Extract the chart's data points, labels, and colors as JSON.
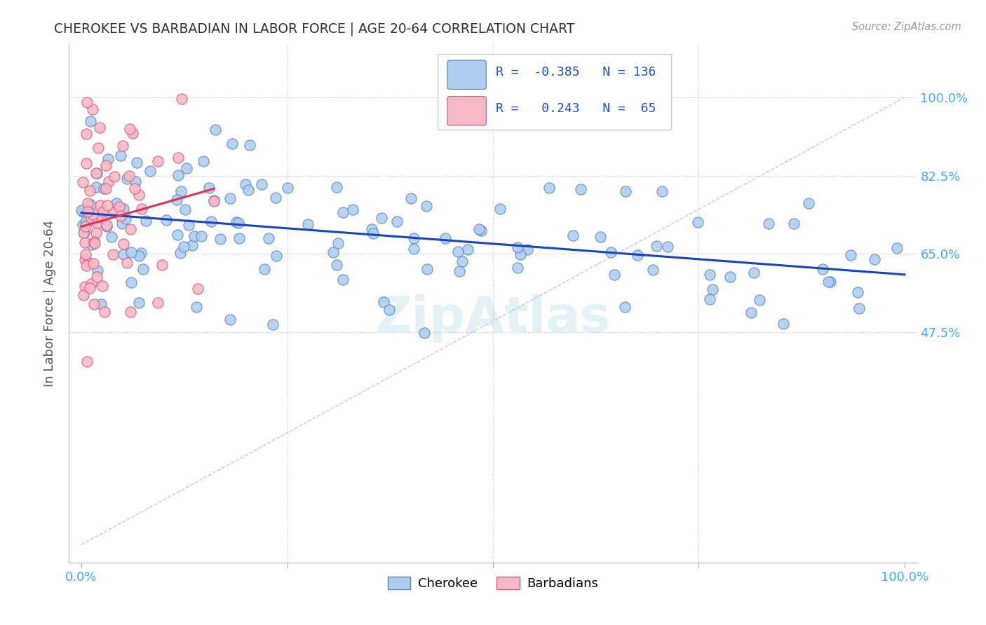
{
  "title": "CHEROKEE VS BARBADIAN IN LABOR FORCE | AGE 20-64 CORRELATION CHART",
  "source": "Source: ZipAtlas.com",
  "ylabel": "In Labor Force | Age 20-64",
  "legend_cherokee": "Cherokee",
  "legend_barbadians": "Barbadians",
  "R_cherokee": -0.385,
  "N_cherokee": 136,
  "R_barbadians": 0.243,
  "N_barbadians": 65,
  "cherokee_face": "#aeccee",
  "cherokee_edge": "#5588cc",
  "barbadians_face": "#f5b8c5",
  "barbadians_edge": "#dd5577",
  "trend_cherokee": "#1a44bb",
  "trend_barbadians": "#dd3355",
  "diag_color": "#cccccc",
  "bg_color": "#ffffff",
  "grid_color": "#dddddd",
  "title_color": "#333333",
  "axis_tick_color": "#44aaff",
  "ylabel_color": "#555555",
  "legend_text_color": "#2255cc",
  "source_color": "#999999",
  "watermark": "ZipAtlas",
  "seed": 42,
  "ytick_vals": [
    0.0,
    0.475,
    0.65,
    0.825,
    1.0
  ],
  "ytick_labels_right": [
    "",
    "47.5%",
    "65.0%",
    "82.5%",
    "100.0%"
  ],
  "xlim": [
    -0.015,
    1.015
  ],
  "ylim": [
    -0.04,
    1.12
  ]
}
